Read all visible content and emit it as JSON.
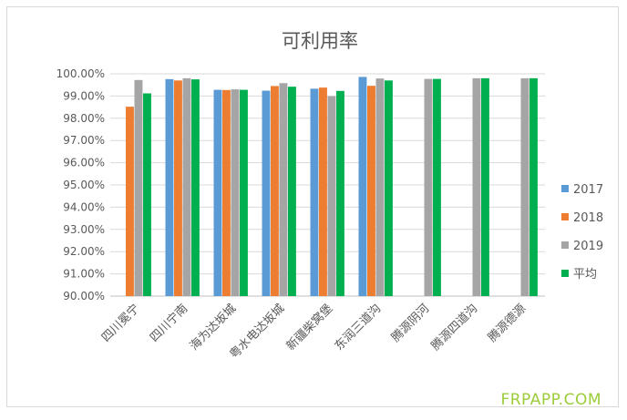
{
  "watermark": "FRPAPP.COM",
  "chart_data": {
    "type": "bar",
    "title": "可利用率",
    "xlabel": "",
    "ylabel": "",
    "ylim": [
      90,
      100
    ],
    "yticks": [
      "90.00%",
      "91.00%",
      "92.00%",
      "93.00%",
      "94.00%",
      "95.00%",
      "96.00%",
      "97.00%",
      "98.00%",
      "99.00%",
      "100.00%"
    ],
    "grid": true,
    "legend_position": "right",
    "categories": [
      "四川冕宁",
      "四川宁南",
      "海为达坂城",
      "粤水电达坂城",
      "新疆柴窝堡",
      "东润三道沟",
      "腾源阴河",
      "腾源四道沟",
      "腾源德源"
    ],
    "series": [
      {
        "name": "2017",
        "color": "#5b9bd5",
        "values": [
          null,
          99.76,
          99.28,
          99.24,
          99.33,
          99.86,
          null,
          null,
          null
        ]
      },
      {
        "name": "2018",
        "color": "#ed7d31",
        "values": [
          98.52,
          99.7,
          99.27,
          99.45,
          99.38,
          99.46,
          null,
          null,
          null
        ]
      },
      {
        "name": "2019",
        "color": "#a5a5a5",
        "values": [
          99.72,
          99.8,
          99.3,
          99.58,
          98.99,
          99.79,
          99.77,
          99.8,
          99.8
        ]
      },
      {
        "name": "平均",
        "color": "#00b050",
        "values": [
          99.12,
          99.75,
          99.28,
          99.42,
          99.23,
          99.7,
          99.77,
          99.8,
          99.8
        ]
      }
    ]
  }
}
